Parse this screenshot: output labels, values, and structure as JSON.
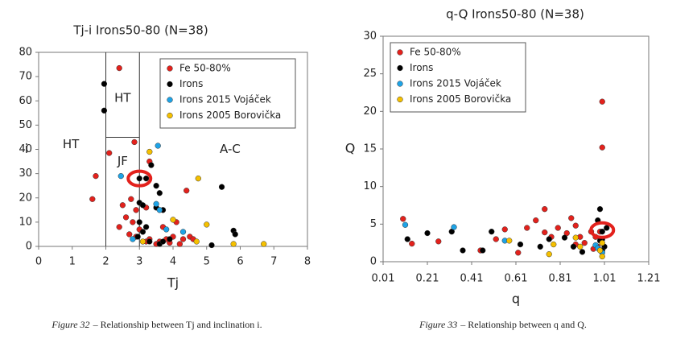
{
  "chart_data": [
    {
      "type": "scatter",
      "title": "Tj-i  Irons50-80 (N=38)",
      "x_label": "Tj",
      "y_label": "i",
      "xlim": [
        0,
        8
      ],
      "ylim": [
        0,
        80
      ],
      "xticks": [
        0,
        1,
        2,
        3,
        4,
        5,
        6,
        7,
        8
      ],
      "yticks": [
        0,
        10,
        20,
        30,
        40,
        50,
        60,
        70,
        80
      ],
      "legend": "upper right",
      "series": [
        {
          "name": "Fe 50-80%",
          "color": "#e3211c",
          "x": [
            2.4,
            2.1,
            2.85,
            1.7,
            1.6,
            2.75,
            2.5,
            2.9,
            2.6,
            2.4,
            2.7,
            2.9,
            3.0,
            3.2,
            3.3,
            3.5,
            3.6,
            3.8,
            4.0,
            4.1,
            4.3,
            4.4,
            4.5,
            4.6,
            4.2,
            3.3,
            3.2,
            3.7,
            3.9,
            2.8
          ],
          "values": [
            73.5,
            38.5,
            43,
            29,
            19.5,
            19.5,
            17,
            15,
            12,
            8,
            5,
            4,
            7,
            2,
            3,
            1,
            2,
            3,
            4,
            10,
            3,
            23,
            4,
            3,
            1,
            35,
            16,
            8,
            1.5,
            10
          ]
        },
        {
          "name": "Irons",
          "color": "#000000",
          "x": [
            1.95,
            1.95,
            3.0,
            3.2,
            3.35,
            3.5,
            3.6,
            3.0,
            3.1,
            3.2,
            3.0,
            3.1,
            3.6,
            3.7,
            3.9,
            5.45,
            5.8,
            5.85,
            5.15,
            2.95,
            3.3,
            3.5,
            3.7
          ],
          "values": [
            67,
            56,
            28,
            28,
            33.5,
            25,
            22,
            18,
            17,
            8,
            10,
            6,
            1,
            2,
            3,
            24.5,
            6.5,
            5,
            0.5,
            4,
            2,
            16,
            15
          ]
        },
        {
          "name": "Irons 2015 Vojáček",
          "color": "#1ea3e6",
          "x": [
            2.45,
            3.55,
            3.5,
            3.8,
            4.3,
            2.8,
            3.6
          ],
          "values": [
            29,
            41.5,
            17.5,
            7,
            6,
            3,
            15
          ]
        },
        {
          "name": "Irons 2005 Borovička",
          "color": "#f5c000",
          "x": [
            3.3,
            4.75,
            4.0,
            5.0,
            4.7,
            5.8,
            6.7,
            3.1
          ],
          "values": [
            39,
            28,
            11,
            9,
            2,
            1,
            1,
            2
          ]
        }
      ],
      "boundaries": [
        {
          "x": [
            2,
            2
          ],
          "y": [
            0,
            80
          ]
        },
        {
          "x": [
            3,
            3
          ],
          "y": [
            0,
            80
          ]
        },
        {
          "x": [
            2,
            3
          ],
          "y": [
            45,
            45
          ]
        }
      ],
      "annotations": [
        {
          "text": "HT",
          "x": 0.96,
          "y": 42
        },
        {
          "text": "HT",
          "x": 2.5,
          "y": 61
        },
        {
          "text": "JF",
          "x": 2.5,
          "y": 35
        },
        {
          "text": "A-C",
          "x": 5.7,
          "y": 40
        }
      ],
      "highlight": {
        "x": 3,
        "y": 28
      }
    },
    {
      "type": "scatter",
      "title": "q-Q  Irons50-80 (N=38)",
      "x_label": "q",
      "y_label": "Q",
      "xlim": [
        0.01,
        1.21
      ],
      "ylim": [
        0,
        30
      ],
      "xticks": [
        0.01,
        0.21,
        0.41,
        0.61,
        0.81,
        1.01,
        1.21
      ],
      "yticks": [
        0,
        5,
        10,
        15,
        20,
        25,
        30
      ],
      "legend": "upper left",
      "series": [
        {
          "name": "Fe 50-80%",
          "color": "#e3211c",
          "x": [
            0.1,
            0.14,
            0.26,
            0.52,
            0.56,
            0.66,
            0.7,
            0.74,
            0.77,
            0.8,
            0.84,
            0.86,
            0.88,
            0.9,
            0.92,
            0.95,
            0.97,
            0.99,
            1.0,
            1.0,
            0.98,
            0.62,
            0.45,
            0.74,
            0.88,
            0.96
          ],
          "values": [
            5.7,
            2.4,
            2.7,
            3,
            4.3,
            4.5,
            5.5,
            7,
            3.3,
            4.5,
            3.8,
            5.8,
            4.8,
            3.3,
            2.5,
            4,
            3.3,
            4,
            21.3,
            15.2,
            2,
            1.2,
            1.5,
            3.9,
            2.3,
            1.7
          ]
        },
        {
          "name": "Irons",
          "color": "#000000",
          "x": [
            0.12,
            0.21,
            0.32,
            0.37,
            0.46,
            0.5,
            0.63,
            0.72,
            0.76,
            0.83,
            0.87,
            0.91,
            0.98,
            0.99,
            1.0,
            1.02,
            1.0,
            1.01,
            1.0,
            0.99
          ],
          "values": [
            3,
            3.8,
            4,
            1.5,
            1.5,
            4,
            2.3,
            2,
            3,
            3.2,
            2,
            1.3,
            5.5,
            7,
            4,
            4.5,
            3,
            2,
            1.5,
            2.8
          ]
        },
        {
          "name": "Irons 2015 Vojáček",
          "color": "#1ea3e6",
          "x": [
            0.11,
            0.33,
            0.56,
            0.97,
            0.98,
            1.0
          ],
          "values": [
            4.9,
            4.6,
            2.8,
            2.2,
            1.8,
            1.2
          ]
        },
        {
          "name": "Irons 2005 Borovička",
          "color": "#f5c000",
          "x": [
            0.58,
            0.76,
            0.78,
            0.88,
            0.9,
            0.99,
            1.0,
            1.0
          ],
          "values": [
            2.8,
            1,
            2.3,
            3.2,
            2,
            1.5,
            0.7,
            2.5
          ]
        }
      ],
      "highlight": {
        "x": 1.0,
        "y": 4.2
      }
    }
  ],
  "captions": [
    {
      "label": "Figure 32",
      "text": "– Relationship between Tj and inclination i."
    },
    {
      "label": "Figure 33",
      "text": "– Relationship between q and Q."
    }
  ]
}
